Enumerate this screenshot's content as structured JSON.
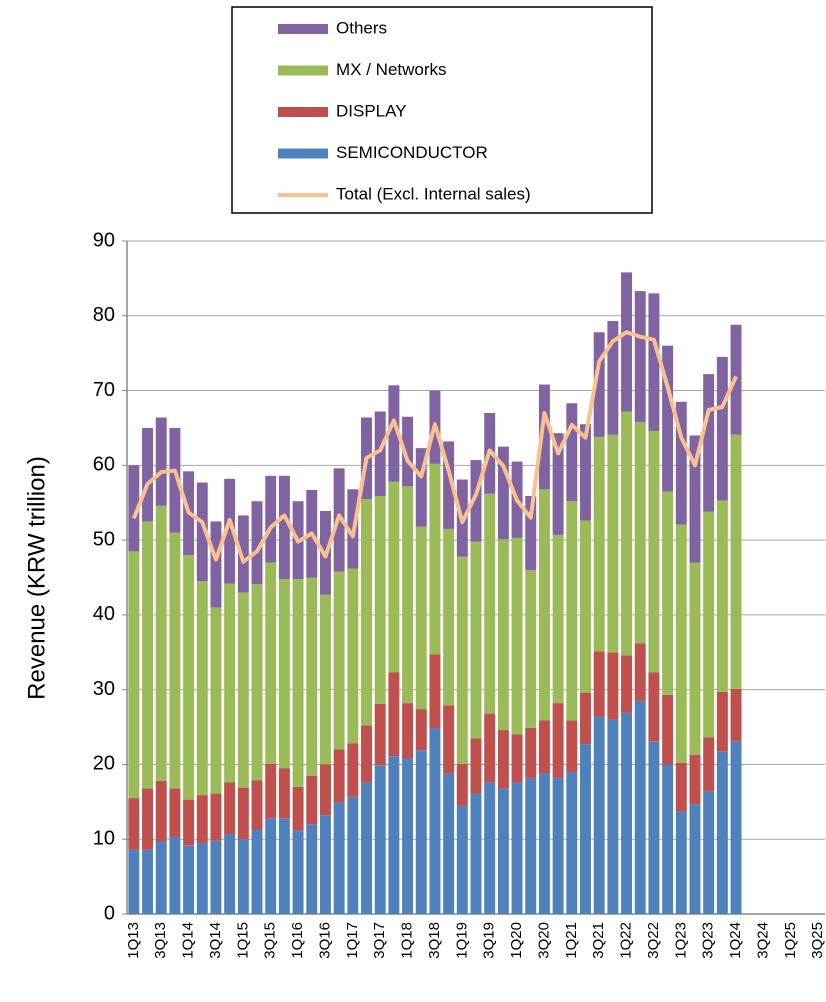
{
  "chart_data": {
    "type": "bar",
    "stacked": true,
    "ylabel": "Revenue (KRW trillion)",
    "categories": [
      "1Q13",
      null,
      "3Q13",
      null,
      "1Q14",
      null,
      "3Q14",
      null,
      "1Q15",
      null,
      "3Q15",
      null,
      "1Q16",
      null,
      "3Q16",
      null,
      "1Q17",
      null,
      "3Q17",
      null,
      "1Q18",
      null,
      "3Q18",
      null,
      "1Q19",
      null,
      "3Q19",
      null,
      "1Q20",
      null,
      "3Q20",
      null,
      "1Q21",
      null,
      "3Q21",
      null,
      "1Q22",
      null,
      "3Q22",
      null,
      "1Q23",
      null,
      "3Q23",
      null,
      "1Q24",
      null,
      "3Q24",
      null,
      "1Q25",
      null,
      "3Q25"
    ],
    "series": [
      {
        "name": "SEMICONDUCTOR",
        "color": "#4f81bd",
        "values": [
          8.6,
          8.6,
          9.7,
          10.3,
          9.2,
          9.5,
          9.8,
          10.7,
          10,
          11.3,
          12.8,
          12.8,
          11.2,
          12,
          13.2,
          14.9,
          15.7,
          17.6,
          19.9,
          21.1,
          20.8,
          21.9,
          24.8,
          18.8,
          14.5,
          16.1,
          17.6,
          16.8,
          17.6,
          18.2,
          18.8,
          18.2,
          19,
          22.7,
          26.4,
          26,
          26.9,
          28.5,
          23.1,
          20,
          13.7,
          14.7,
          16.4,
          21.7,
          23.1,
          null,
          null,
          null,
          null,
          null,
          null
        ]
      },
      {
        "name": "DISPLAY",
        "color": "#c0504d",
        "values": [
          6.9,
          8.2,
          8.1,
          6.5,
          6.1,
          6.4,
          6.3,
          6.9,
          6.9,
          6.6,
          7.3,
          6.7,
          5.8,
          6.5,
          6.8,
          7.1,
          7.1,
          7.6,
          8.2,
          11.2,
          7.4,
          5.5,
          9.9,
          9.1,
          5.6,
          7.4,
          9.2,
          7.8,
          6.4,
          6.7,
          7.1,
          10,
          6.9,
          6.9,
          8.7,
          9,
          7.7,
          7.7,
          9.2,
          9.3,
          6.5,
          6.6,
          7.2,
          8,
          7,
          null,
          null,
          null,
          null,
          null,
          null
        ]
      },
      {
        "name": "MX / Networks",
        "color": "#9bbb59",
        "values": [
          33,
          35.7,
          36.8,
          34.2,
          32.7,
          28.6,
          24.9,
          26.6,
          26.1,
          26.2,
          26.9,
          25.3,
          27.8,
          26.5,
          22.7,
          23.8,
          23.4,
          30.3,
          27.8,
          25.5,
          29,
          24.4,
          25.5,
          23.6,
          27.7,
          26.3,
          29.4,
          25.5,
          26.3,
          21.1,
          30.9,
          22.5,
          29.3,
          23,
          28.7,
          29.1,
          32.6,
          29.6,
          32.3,
          27.2,
          31.9,
          25.7,
          30.2,
          25.6,
          34,
          null,
          null,
          null,
          null,
          null,
          null
        ]
      },
      {
        "name": "Others",
        "color": "#8064a2",
        "values": [
          11.5,
          12.5,
          11.8,
          14,
          11.2,
          13.2,
          11.5,
          14,
          10.3,
          11.1,
          11.6,
          13.8,
          10.4,
          11.7,
          11.2,
          13.8,
          10.6,
          10.9,
          11.3,
          12.9,
          9.3,
          10.5,
          9.8,
          11.7,
          10.3,
          10.9,
          10.8,
          12.4,
          10.2,
          9.9,
          14,
          13.6,
          13.1,
          12.9,
          14,
          15.2,
          18.6,
          17.5,
          18.4,
          19.5,
          16.4,
          17,
          18.4,
          19.2,
          14.7,
          null,
          null,
          null,
          null,
          null,
          null
        ]
      },
      {
        "name": "Total (Excl. Internal sales)",
        "type": "line",
        "color": "#fac090",
        "values": [
          52.9,
          57.5,
          59.1,
          59.3,
          53.7,
          52.4,
          47.4,
          52.7,
          47.1,
          48.5,
          51.7,
          53.3,
          49.8,
          50.9,
          47.8,
          53.3,
          50.5,
          61,
          62,
          66,
          60.6,
          58.5,
          65.5,
          59.3,
          52.4,
          56.1,
          62,
          59.9,
          55.3,
          53,
          67,
          61.6,
          65.4,
          63.7,
          73.9,
          76.6,
          77.8,
          77.2,
          76.8,
          70.5,
          63.7,
          60,
          67.4,
          67.8,
          71.9,
          null,
          null,
          null,
          null,
          null,
          null
        ]
      }
    ],
    "legend_order": [
      3,
      2,
      1,
      0,
      4
    ],
    "ylim": [
      0,
      90
    ],
    "yticks": [
      0,
      10,
      20,
      30,
      40,
      50,
      60,
      70,
      80,
      90
    ],
    "grid": true
  }
}
